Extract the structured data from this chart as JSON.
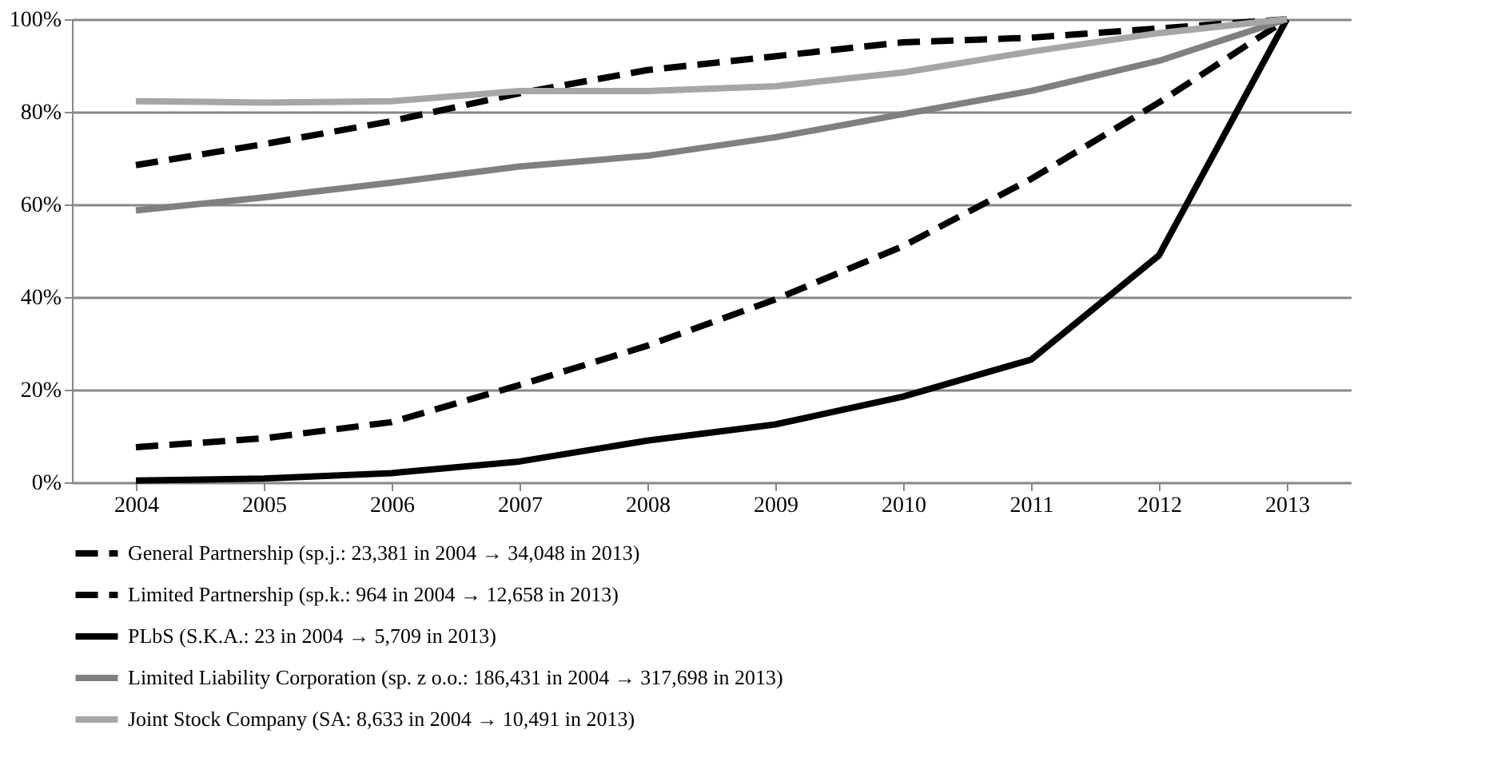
{
  "chart_data": {
    "type": "line",
    "categories": [
      "2004",
      "2005",
      "2006",
      "2007",
      "2008",
      "2009",
      "2010",
      "2011",
      "2012",
      "2013"
    ],
    "ylim": [
      0,
      100
    ],
    "yticks": [
      {
        "value": 0,
        "label": "0%"
      },
      {
        "value": 20,
        "label": "20%"
      },
      {
        "value": 40,
        "label": "40%"
      },
      {
        "value": 60,
        "label": "60%"
      },
      {
        "value": 80,
        "label": "80%"
      },
      {
        "value": 100,
        "label": "100%"
      }
    ],
    "grid": "y",
    "legend": "bottom",
    "marker": "none",
    "series": [
      {
        "name": "General Partnership (sp.j.: 23,381 in 2004 → 34,048 in 2013)",
        "color": "#000000",
        "line_style": "dashed",
        "values": [
          68.5,
          73,
          78,
          84,
          89,
          92,
          95,
          96,
          98,
          100
        ]
      },
      {
        "name": "Limited Partnership (sp.k.: 964 in 2004 → 12,658 in 2013)",
        "color": "#000000",
        "line_style": "dashed",
        "values": [
          7.6,
          9.5,
          13,
          21,
          29.5,
          39.5,
          51,
          65.5,
          82,
          100
        ]
      },
      {
        "name": "PLbS (S.K.A.: 23 in 2004 → 5,709 in 2013)",
        "color": "#000000",
        "line_style": "solid",
        "values": [
          0.4,
          0.8,
          2,
          4.5,
          9,
          12.5,
          18.5,
          26.5,
          49,
          100
        ]
      },
      {
        "name": "Limited Liability Corporation (sp. z o.o.: 186,431 in 2004 → 317,698 in 2013)",
        "color": "#808080",
        "line_style": "solid",
        "values": [
          58.7,
          61.5,
          64.7,
          68.2,
          70.5,
          74.5,
          79.5,
          84.5,
          91,
          100
        ]
      },
      {
        "name": "Joint Stock Company (SA: 8,633 in 2004 → 10,491 in 2013)",
        "color": "#a6a6a6",
        "line_style": "solid",
        "values": [
          82.3,
          82,
          82.3,
          84.5,
          84.5,
          85.5,
          88.5,
          93,
          97,
          100
        ]
      }
    ]
  }
}
